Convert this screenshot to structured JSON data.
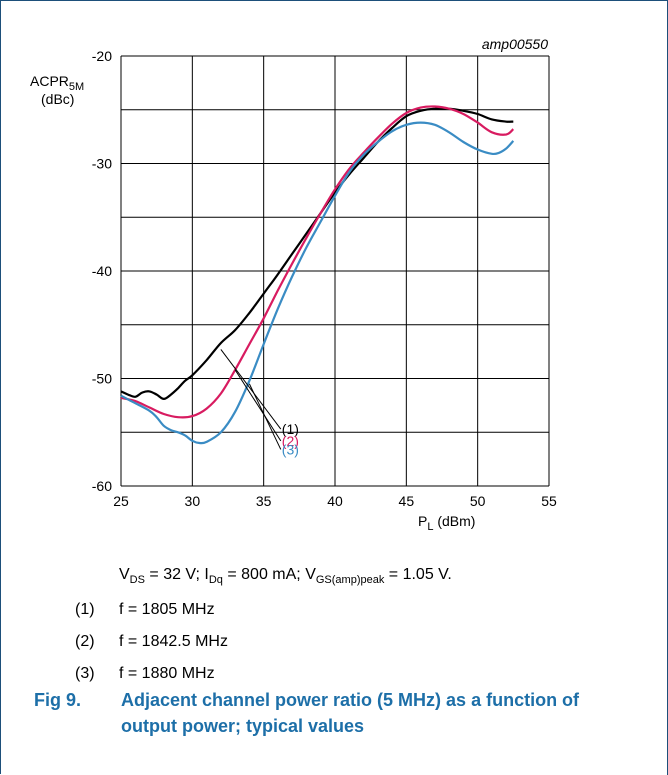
{
  "chart_data": {
    "type": "line",
    "id_label": "amp00550",
    "ylabel_main": "ACPR",
    "ylabel_sub": "5M",
    "ylabel_unit": "(dBc)",
    "xlabel_main": "P",
    "xlabel_sub": "L",
    "xlabel_unit": " (dBm)",
    "xlim": [
      25,
      55
    ],
    "ylim": [
      -60,
      -20
    ],
    "xticks": [
      25,
      30,
      35,
      40,
      45,
      50,
      55
    ],
    "yticks": [
      -20,
      -30,
      -40,
      -50,
      -60
    ],
    "grid": true,
    "series": [
      {
        "name": "(1)",
        "color": "#000000",
        "points": [
          [
            25,
            -51.2
          ],
          [
            25.5,
            -51.5
          ],
          [
            26,
            -51.7
          ],
          [
            26.5,
            -51.3
          ],
          [
            27,
            -51.2
          ],
          [
            27.5,
            -51.5
          ],
          [
            28,
            -51.9
          ],
          [
            28.5,
            -51.5
          ],
          [
            29,
            -50.9
          ],
          [
            29.5,
            -50.2
          ],
          [
            30,
            -49.7
          ],
          [
            31,
            -48.3
          ],
          [
            32,
            -46.7
          ],
          [
            33,
            -45.5
          ],
          [
            34,
            -43.9
          ],
          [
            35,
            -42.1
          ],
          [
            36,
            -40.3
          ],
          [
            37,
            -38.4
          ],
          [
            38,
            -36.5
          ],
          [
            39,
            -34.6
          ],
          [
            40,
            -32.7
          ],
          [
            41,
            -31.0
          ],
          [
            42,
            -29.5
          ],
          [
            43,
            -28.0
          ],
          [
            44,
            -26.7
          ],
          [
            45,
            -25.6
          ],
          [
            46,
            -25.1
          ],
          [
            47,
            -24.9
          ],
          [
            48,
            -24.9
          ],
          [
            49,
            -25.1
          ],
          [
            50,
            -25.4
          ],
          [
            51,
            -25.9
          ],
          [
            52,
            -26.1
          ],
          [
            52.5,
            -26.1
          ]
        ]
      },
      {
        "name": "(2)",
        "color": "#d81b60",
        "points": [
          [
            25,
            -51.8
          ],
          [
            26,
            -52.1
          ],
          [
            27,
            -52.7
          ],
          [
            28,
            -53.3
          ],
          [
            29,
            -53.6
          ],
          [
            30,
            -53.5
          ],
          [
            31,
            -52.8
          ],
          [
            32,
            -51.4
          ],
          [
            33,
            -49.2
          ],
          [
            34,
            -46.8
          ],
          [
            35,
            -44.4
          ],
          [
            36,
            -41.8
          ],
          [
            37,
            -39.3
          ],
          [
            38,
            -36.9
          ],
          [
            39,
            -34.6
          ],
          [
            40,
            -32.4
          ],
          [
            41,
            -30.5
          ],
          [
            42,
            -29.0
          ],
          [
            43,
            -27.6
          ],
          [
            44,
            -26.3
          ],
          [
            45,
            -25.3
          ],
          [
            46,
            -24.8
          ],
          [
            47,
            -24.7
          ],
          [
            48,
            -24.9
          ],
          [
            49,
            -25.4
          ],
          [
            50,
            -26.2
          ],
          [
            51,
            -27.1
          ],
          [
            52,
            -27.3
          ],
          [
            52.5,
            -26.8
          ]
        ]
      },
      {
        "name": "(3)",
        "color": "#3a8cc4",
        "points": [
          [
            25,
            -51.6
          ],
          [
            26,
            -52.3
          ],
          [
            27,
            -53.0
          ],
          [
            27.5,
            -53.6
          ],
          [
            28,
            -54.4
          ],
          [
            28.5,
            -54.8
          ],
          [
            29,
            -55.0
          ],
          [
            29.5,
            -55.3
          ],
          [
            30,
            -55.8
          ],
          [
            30.5,
            -56.0
          ],
          [
            31,
            -55.9
          ],
          [
            32,
            -55.0
          ],
          [
            33,
            -53.1
          ],
          [
            34,
            -50.2
          ],
          [
            35,
            -46.8
          ],
          [
            36,
            -43.5
          ],
          [
            37,
            -40.5
          ],
          [
            38,
            -37.8
          ],
          [
            39,
            -35.4
          ],
          [
            40,
            -33.0
          ],
          [
            41,
            -30.8
          ],
          [
            42,
            -29.2
          ],
          [
            43,
            -28.0
          ],
          [
            44,
            -27.0
          ],
          [
            45,
            -26.4
          ],
          [
            46,
            -26.2
          ],
          [
            47,
            -26.4
          ],
          [
            48,
            -27.1
          ],
          [
            49,
            -28.0
          ],
          [
            50,
            -28.7
          ],
          [
            51,
            -29.1
          ],
          [
            51.5,
            -29.0
          ],
          [
            52,
            -28.6
          ],
          [
            52.5,
            -27.9
          ]
        ]
      }
    ],
    "callouts": [
      {
        "label": "(1)",
        "color": "#000000",
        "from": [
          32.0,
          -47.3
        ],
        "to": [
          36.2,
          -54.7
        ]
      },
      {
        "label": "(2)",
        "color": "#d81b60",
        "from": [
          33.0,
          -49.2
        ],
        "to": [
          36.2,
          -55.8
        ]
      },
      {
        "label": "(3)",
        "color": "#3a8cc4",
        "from": [
          34.0,
          -50.5
        ],
        "to": [
          36.2,
          -56.6
        ]
      }
    ]
  },
  "caption": {
    "conditions": {
      "v_main": "V",
      "v_sub": "DS",
      "v_rest": " = 32 V; ",
      "i_main": "I",
      "i_sub": "Dq",
      "i_rest": " = 800 mA; ",
      "g_main": "V",
      "g_sub": "GS(amp)peak",
      "g_rest": " = 1.05 V."
    },
    "notes": [
      {
        "num": "(1)",
        "text": "f = 1805 MHz"
      },
      {
        "num": "(2)",
        "text": "f = 1842.5 MHz"
      },
      {
        "num": "(3)",
        "text": "f = 1880 MHz"
      }
    ],
    "fig_number": "Fig 9.",
    "fig_title": "Adjacent channel power ratio (5 MHz) as a function of output power; typical values"
  }
}
